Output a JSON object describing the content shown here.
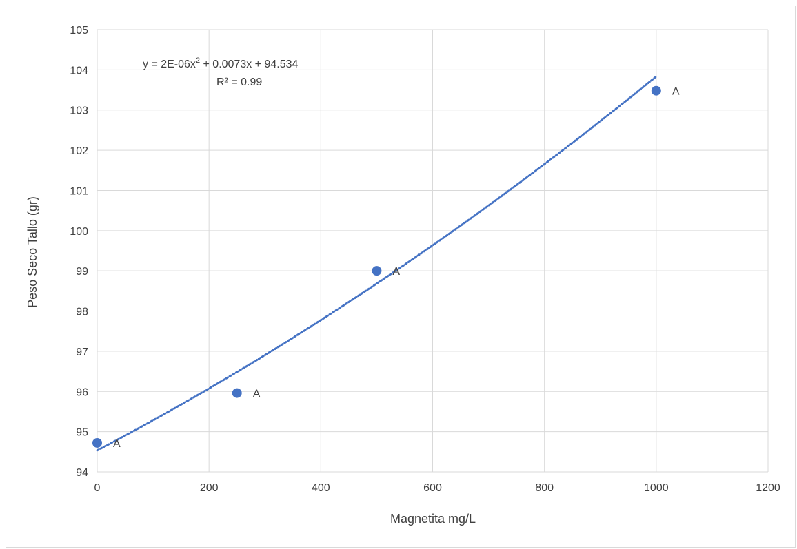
{
  "chart_data": {
    "type": "scatter",
    "title": "",
    "xlabel": "Magnetita mg/L",
    "ylabel": "Peso Seco Tallo (gr)",
    "xlim": [
      0,
      1200
    ],
    "ylim": [
      94,
      105
    ],
    "x_ticks": [
      0,
      200,
      400,
      600,
      800,
      1000,
      1200
    ],
    "y_ticks": [
      94,
      95,
      96,
      97,
      98,
      99,
      100,
      101,
      102,
      103,
      104,
      105
    ],
    "grid": true,
    "legend": "none",
    "series": [
      {
        "color": "#4472c4",
        "x": [
          0,
          250,
          500,
          1000
        ],
        "y": [
          94.72,
          95.96,
          99.0,
          103.48
        ],
        "labels": [
          "A",
          "A",
          "A",
          "A"
        ]
      }
    ],
    "trendline": {
      "type": "polynomial",
      "order": 2,
      "coefficients": {
        "a": 2e-06,
        "b": 0.0073,
        "c": 94.534
      },
      "x_range": [
        0,
        1000
      ],
      "color": "#4472c4",
      "style": "dotted",
      "equation_parts": {
        "lead": "y = 2E-06x",
        "exponent": "2",
        "tail": " + 0.0073x + 94.534"
      },
      "r_squared_text": "R² = 0.99"
    },
    "colors": {
      "grid": "#d9d9d9",
      "text": "#404040",
      "marker": "#4472c4",
      "frame": "#d9d9d9"
    }
  }
}
